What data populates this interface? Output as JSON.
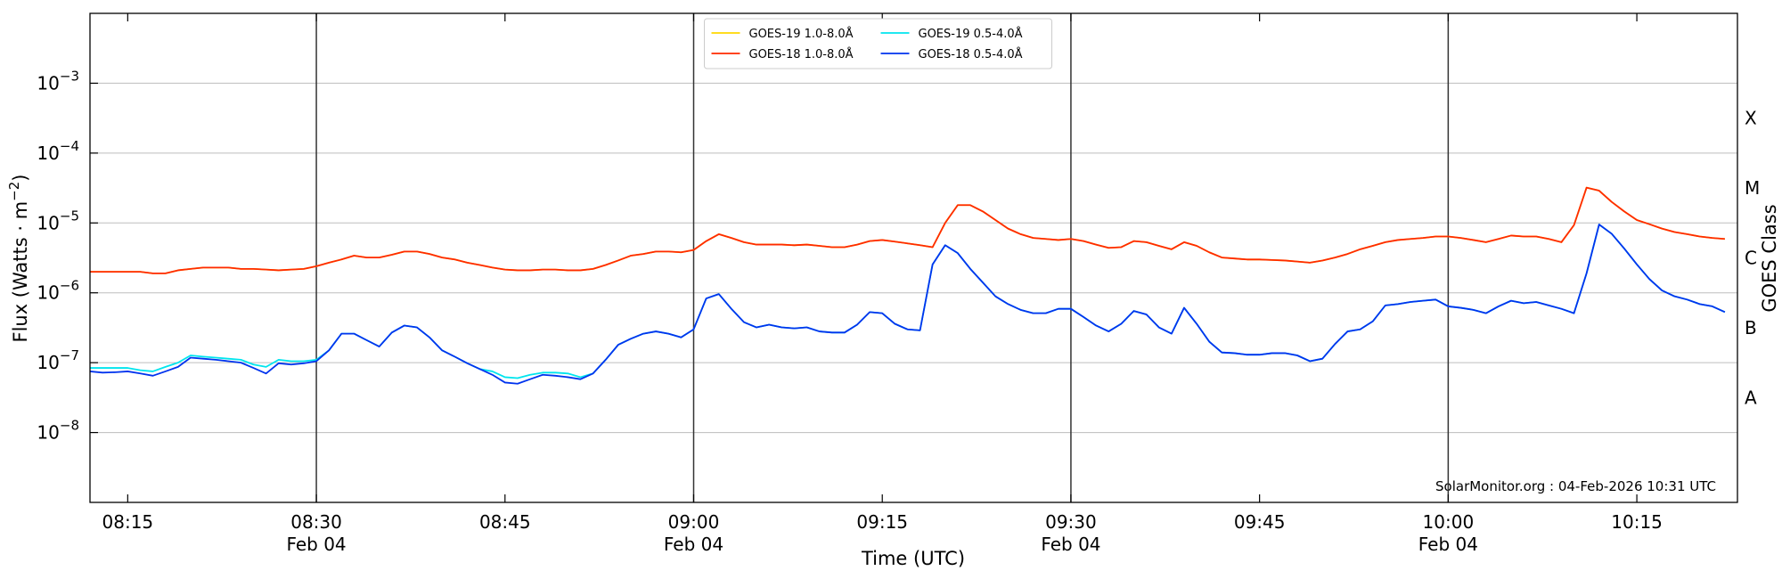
{
  "chart_data": {
    "type": "line",
    "yscale": "log",
    "xlabel": "Time (UTC)",
    "ylabel": {
      "text": "Flux (Watts · m",
      "exponent": "−2",
      "suffix": ")"
    },
    "y2label": "GOES Class",
    "annotation": "SolarMonitor.org : 04-Feb-2026 10:31 UTC",
    "legend": "upper center",
    "legend_columns": 2,
    "grid": true,
    "xlim": [
      "08:12",
      "10:23"
    ],
    "xticks": [
      "08:15",
      {
        "value": "08:30",
        "label": "08:30",
        "date": "Feb 04"
      },
      "08:45",
      {
        "value": "09:00",
        "label": "09:00",
        "date": "Feb 04"
      },
      "09:15",
      {
        "value": "09:30",
        "label": "09:30",
        "date": "Feb 04"
      },
      "09:45",
      {
        "value": "10:00",
        "label": "10:00",
        "date": "Feb 04"
      },
      "10:15"
    ],
    "ylim": [
      1e-09,
      0.01
    ],
    "yticks": [
      {
        "value": 1e-08,
        "label": "10",
        "exponent": "−8"
      },
      {
        "value": 1e-07,
        "label": "10",
        "exponent": "−7"
      },
      {
        "value": 1e-06,
        "label": "10",
        "exponent": "−6"
      },
      {
        "value": 1e-05,
        "label": "10",
        "exponent": "−5"
      },
      {
        "value": 0.0001,
        "label": "10",
        "exponent": "−4"
      },
      {
        "value": 0.001,
        "label": "10",
        "exponent": "−3"
      }
    ],
    "y2lim": [
      1e-09,
      0.01
    ],
    "y2ticks": [
      {
        "value": 3.16e-08,
        "label": "A"
      },
      {
        "value": 3.16e-07,
        "label": "B"
      },
      {
        "value": 3.16e-06,
        "label": "C"
      },
      {
        "value": 3.16e-05,
        "label": "M"
      },
      {
        "value": 0.000316,
        "label": "X"
      }
    ],
    "x": [
      "08:12",
      "08:13",
      "08:14",
      "08:15",
      "08:16",
      "08:17",
      "08:18",
      "08:19",
      "08:20",
      "08:21",
      "08:22",
      "08:23",
      "08:24",
      "08:25",
      "08:26",
      "08:27",
      "08:28",
      "08:29",
      "08:30",
      "08:31",
      "08:32",
      "08:33",
      "08:34",
      "08:35",
      "08:36",
      "08:37",
      "08:38",
      "08:39",
      "08:40",
      "08:41",
      "08:42",
      "08:43",
      "08:44",
      "08:45",
      "08:46",
      "08:47",
      "08:48",
      "08:49",
      "08:50",
      "08:51",
      "08:52",
      "08:53",
      "08:54",
      "08:55",
      "08:56",
      "08:57",
      "08:58",
      "08:59",
      "09:00",
      "09:01",
      "09:02",
      "09:03",
      "09:04",
      "09:05",
      "09:06",
      "09:07",
      "09:08",
      "09:09",
      "09:10",
      "09:11",
      "09:12",
      "09:13",
      "09:14",
      "09:15",
      "09:16",
      "09:17",
      "09:18",
      "09:19",
      "09:20",
      "09:21",
      "09:22",
      "09:23",
      "09:24",
      "09:25",
      "09:26",
      "09:27",
      "09:28",
      "09:29",
      "09:30",
      "09:31",
      "09:32",
      "09:33",
      "09:34",
      "09:35",
      "09:36",
      "09:37",
      "09:38",
      "09:39",
      "09:40",
      "09:41",
      "09:42",
      "09:43",
      "09:44",
      "09:45",
      "09:46",
      "09:47",
      "09:48",
      "09:49",
      "09:50",
      "09:51",
      "09:52",
      "09:53",
      "09:54",
      "09:55",
      "09:56",
      "09:57",
      "09:58",
      "09:59",
      "10:00",
      "10:01",
      "10:02",
      "10:03",
      "10:04",
      "10:05",
      "10:06",
      "10:07",
      "10:08",
      "10:09",
      "10:10",
      "10:11",
      "10:12",
      "10:13",
      "10:14",
      "10:15",
      "10:16",
      "10:17",
      "10:18",
      "10:19",
      "10:20",
      "10:21",
      "10:22"
    ],
    "series": [
      {
        "name": "GOES-19 1.0-8.0Å",
        "color": "#ffd700",
        "values": [
          2e-06,
          2e-06,
          2e-06,
          2e-06,
          2e-06,
          1.9e-06,
          1.9e-06,
          2.1e-06,
          2.2e-06,
          2.3e-06,
          2.3e-06,
          2.3e-06,
          2.2e-06,
          2.2e-06,
          2.15e-06,
          2.1e-06,
          2.15e-06,
          2.2e-06,
          2.4e-06,
          2.7e-06,
          3e-06,
          3.4e-06,
          3.2e-06,
          3.2e-06,
          3.5e-06,
          3.9e-06,
          3.9e-06,
          3.6e-06,
          3.2e-06,
          3e-06,
          2.7e-06,
          2.5e-06,
          2.3e-06,
          2.15e-06,
          2.1e-06,
          2.1e-06,
          2.15e-06,
          2.15e-06,
          2.1e-06,
          2.1e-06,
          2.2e-06,
          2.5e-06,
          2.9e-06,
          3.4e-06,
          3.6e-06,
          3.9e-06,
          3.9e-06,
          3.8e-06,
          4.1e-06,
          5.5e-06,
          6.9e-06,
          6.1e-06,
          5.3e-06,
          4.9e-06,
          4.9e-06,
          4.9e-06,
          4.8e-06,
          4.9e-06,
          4.7e-06,
          4.5e-06,
          4.5e-06,
          4.9e-06,
          5.5e-06,
          5.7e-06,
          5.4e-06,
          5.1e-06,
          4.8e-06,
          4.5e-06,
          1e-05,
          1.8e-05,
          1.8e-05,
          1.46e-05,
          1.1e-05,
          8.3e-06,
          6.9e-06,
          6.1e-06,
          5.9e-06,
          5.7e-06,
          5.9e-06,
          5.5e-06,
          4.9e-06,
          4.4e-06,
          4.5e-06,
          5.5e-06,
          5.3e-06,
          4.7e-06,
          4.2e-06,
          5.3e-06,
          4.7e-06,
          3.8e-06,
          3.2e-06,
          3.1e-06,
          3e-06,
          3e-06,
          2.95e-06,
          2.9e-06,
          2.8e-06,
          2.7e-06,
          2.9e-06,
          3.2e-06,
          3.6e-06,
          4.2e-06,
          4.7e-06,
          5.3e-06,
          5.7e-06,
          5.9e-06,
          6.1e-06,
          6.4e-06,
          6.4e-06,
          6.1e-06,
          5.7e-06,
          5.3e-06,
          5.9e-06,
          6.6e-06,
          6.4e-06,
          6.4e-06,
          5.9e-06,
          5.3e-06,
          9.3e-06,
          3.2e-05,
          2.9e-05,
          2e-05,
          1.46e-05,
          1.1e-05,
          9.6e-06,
          8.3e-06,
          7.4e-06,
          6.9e-06,
          6.4e-06,
          6.1e-06,
          5.9e-06
        ]
      },
      {
        "name": "GOES-18 1.0-8.0Å",
        "color": "#ff2a00",
        "values": [
          2e-06,
          2e-06,
          2e-06,
          2e-06,
          2e-06,
          1.9e-06,
          1.9e-06,
          2.1e-06,
          2.2e-06,
          2.3e-06,
          2.3e-06,
          2.3e-06,
          2.2e-06,
          2.2e-06,
          2.15e-06,
          2.1e-06,
          2.15e-06,
          2.2e-06,
          2.4e-06,
          2.7e-06,
          3e-06,
          3.4e-06,
          3.2e-06,
          3.2e-06,
          3.5e-06,
          3.9e-06,
          3.9e-06,
          3.6e-06,
          3.2e-06,
          3e-06,
          2.7e-06,
          2.5e-06,
          2.3e-06,
          2.15e-06,
          2.1e-06,
          2.1e-06,
          2.15e-06,
          2.15e-06,
          2.1e-06,
          2.1e-06,
          2.2e-06,
          2.5e-06,
          2.9e-06,
          3.4e-06,
          3.6e-06,
          3.9e-06,
          3.9e-06,
          3.8e-06,
          4.1e-06,
          5.5e-06,
          6.9e-06,
          6.1e-06,
          5.3e-06,
          4.9e-06,
          4.9e-06,
          4.9e-06,
          4.8e-06,
          4.9e-06,
          4.7e-06,
          4.5e-06,
          4.5e-06,
          4.9e-06,
          5.5e-06,
          5.7e-06,
          5.4e-06,
          5.1e-06,
          4.8e-06,
          4.5e-06,
          1e-05,
          1.8e-05,
          1.8e-05,
          1.46e-05,
          1.1e-05,
          8.3e-06,
          6.9e-06,
          6.1e-06,
          5.9e-06,
          5.7e-06,
          5.9e-06,
          5.5e-06,
          4.9e-06,
          4.4e-06,
          4.5e-06,
          5.5e-06,
          5.3e-06,
          4.7e-06,
          4.2e-06,
          5.3e-06,
          4.7e-06,
          3.8e-06,
          3.2e-06,
          3.1e-06,
          3e-06,
          3e-06,
          2.95e-06,
          2.9e-06,
          2.8e-06,
          2.7e-06,
          2.9e-06,
          3.2e-06,
          3.6e-06,
          4.2e-06,
          4.7e-06,
          5.3e-06,
          5.7e-06,
          5.9e-06,
          6.1e-06,
          6.4e-06,
          6.4e-06,
          6.1e-06,
          5.7e-06,
          5.3e-06,
          5.9e-06,
          6.6e-06,
          6.4e-06,
          6.4e-06,
          5.9e-06,
          5.3e-06,
          9.3e-06,
          3.2e-05,
          2.9e-05,
          2e-05,
          1.46e-05,
          1.1e-05,
          9.6e-06,
          8.3e-06,
          7.4e-06,
          6.9e-06,
          6.4e-06,
          6.1e-06,
          5.9e-06
        ]
      },
      {
        "name": "GOES-19 0.5-4.0Å",
        "color": "#00e5ee",
        "values": [
          8.4e-08,
          8.4e-08,
          8.4e-08,
          8.4e-08,
          7.8e-08,
          7.5e-08,
          8.7e-08,
          1e-07,
          1.27e-07,
          1.22e-07,
          1.18e-07,
          1.14e-07,
          1.1e-07,
          9.4e-08,
          8.7e-08,
          1.1e-07,
          1.05e-07,
          1.05e-07,
          1.1e-07,
          1.5e-07,
          2.6e-07,
          2.6e-07,
          2.1e-07,
          1.7e-07,
          2.7e-07,
          3.4e-07,
          3.2e-07,
          2.3e-07,
          1.5e-07,
          1.22e-07,
          9.8e-08,
          8.1e-08,
          7.5e-08,
          6.2e-08,
          6e-08,
          6.7e-08,
          7.2e-08,
          7.2e-08,
          7e-08,
          6.2e-08,
          7e-08,
          1.1e-07,
          1.8e-07,
          2.2e-07,
          2.6e-07,
          2.8e-07,
          2.6e-07,
          2.3e-07,
          3e-07,
          8.3e-07,
          9.6e-07,
          5.9e-07,
          3.8e-07,
          3.2e-07,
          3.5e-07,
          3.2e-07,
          3.1e-07,
          3.2e-07,
          2.8e-07,
          2.7e-07,
          2.7e-07,
          3.5e-07,
          5.3e-07,
          5.1e-07,
          3.6e-07,
          3e-07,
          2.9e-07,
          2.55e-06,
          4.8e-06,
          3.7e-06,
          2.2e-06,
          1.4e-06,
          8.9e-07,
          6.9e-07,
          5.7e-07,
          5.1e-07,
          5.1e-07,
          5.9e-07,
          5.9e-07,
          4.5e-07,
          3.4e-07,
          2.8e-07,
          3.6e-07,
          5.5e-07,
          4.9e-07,
          3.2e-07,
          2.6e-07,
          6.1e-07,
          3.6e-07,
          2e-07,
          1.4e-07,
          1.37e-07,
          1.3e-07,
          1.3e-07,
          1.37e-07,
          1.37e-07,
          1.27e-07,
          1.05e-07,
          1.14e-07,
          1.85e-07,
          2.8e-07,
          3e-07,
          3.9e-07,
          6.6e-07,
          6.9e-07,
          7.4e-07,
          7.7e-07,
          8e-07,
          6.4e-07,
          6.1e-07,
          5.7e-07,
          5.1e-07,
          6.4e-07,
          7.7e-07,
          7.1e-07,
          7.4e-07,
          6.6e-07,
          5.9e-07,
          5.1e-07,
          1.9e-06,
          9.5e-06,
          7e-06,
          4.3e-06,
          2.55e-06,
          1.57e-06,
          1.08e-06,
          8.9e-07,
          8e-07,
          6.9e-07,
          6.4e-07,
          5.3e-07
        ]
      },
      {
        "name": "GOES-18 0.5-4.0Å",
        "color": "#0033ee",
        "values": [
          7.5e-08,
          7.2e-08,
          7.3e-08,
          7.5e-08,
          7e-08,
          6.5e-08,
          7.5e-08,
          8.7e-08,
          1.18e-07,
          1.14e-07,
          1.1e-07,
          1.05e-07,
          1e-07,
          8.4e-08,
          7e-08,
          9.8e-08,
          9.4e-08,
          9.8e-08,
          1.05e-07,
          1.5e-07,
          2.6e-07,
          2.6e-07,
          2.1e-07,
          1.7e-07,
          2.7e-07,
          3.4e-07,
          3.2e-07,
          2.3e-07,
          1.5e-07,
          1.22e-07,
          9.8e-08,
          8.1e-08,
          6.7e-08,
          5.2e-08,
          5e-08,
          5.8e-08,
          6.7e-08,
          6.5e-08,
          6.2e-08,
          5.8e-08,
          7e-08,
          1.1e-07,
          1.8e-07,
          2.2e-07,
          2.6e-07,
          2.8e-07,
          2.6e-07,
          2.3e-07,
          3e-07,
          8.3e-07,
          9.6e-07,
          5.9e-07,
          3.8e-07,
          3.2e-07,
          3.5e-07,
          3.2e-07,
          3.1e-07,
          3.2e-07,
          2.8e-07,
          2.7e-07,
          2.7e-07,
          3.5e-07,
          5.3e-07,
          5.1e-07,
          3.6e-07,
          3e-07,
          2.9e-07,
          2.55e-06,
          4.8e-06,
          3.7e-06,
          2.2e-06,
          1.4e-06,
          8.9e-07,
          6.9e-07,
          5.7e-07,
          5.1e-07,
          5.1e-07,
          5.9e-07,
          5.9e-07,
          4.5e-07,
          3.4e-07,
          2.8e-07,
          3.6e-07,
          5.5e-07,
          4.9e-07,
          3.2e-07,
          2.6e-07,
          6.1e-07,
          3.6e-07,
          2e-07,
          1.4e-07,
          1.37e-07,
          1.3e-07,
          1.3e-07,
          1.37e-07,
          1.37e-07,
          1.27e-07,
          1.05e-07,
          1.14e-07,
          1.85e-07,
          2.8e-07,
          3e-07,
          3.9e-07,
          6.6e-07,
          6.9e-07,
          7.4e-07,
          7.7e-07,
          8e-07,
          6.4e-07,
          6.1e-07,
          5.7e-07,
          5.1e-07,
          6.4e-07,
          7.7e-07,
          7.1e-07,
          7.4e-07,
          6.6e-07,
          5.9e-07,
          5.1e-07,
          1.9e-06,
          9.5e-06,
          7e-06,
          4.3e-06,
          2.55e-06,
          1.57e-06,
          1.08e-06,
          8.9e-07,
          8e-07,
          6.9e-07,
          6.4e-07,
          5.3e-07
        ]
      }
    ]
  }
}
